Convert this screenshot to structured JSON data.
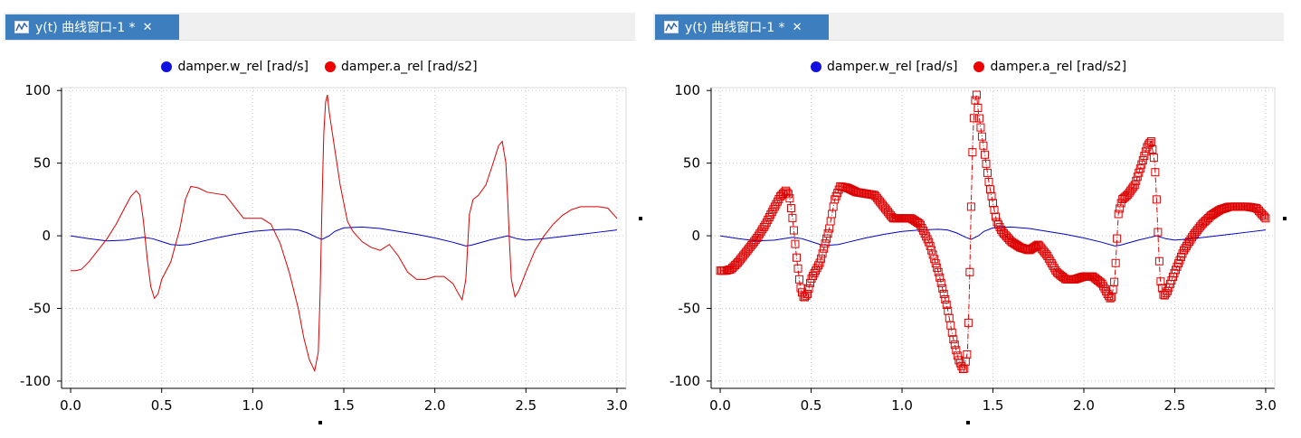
{
  "colors": {
    "tab_bg": "#3d7ebf",
    "series_w": "#0000cc",
    "series_a": "#dd0000",
    "legend_w": "#1010e0",
    "legend_a": "#ee0000",
    "grid": "#c8c8c8"
  },
  "panels": [
    {
      "tab": {
        "title": "y(t) 曲线窗口-1 *",
        "close": "✕",
        "icon": "plot-window-icon"
      },
      "legend": [
        {
          "label": "damper.w_rel [rad/s]"
        },
        {
          "label": "damper.a_rel [rad/s2]"
        }
      ],
      "markers": false
    },
    {
      "tab": {
        "title": "y(t) 曲线窗口-1 *",
        "close": "✕",
        "icon": "plot-window-icon"
      },
      "legend": [
        {
          "label": "damper.w_rel [rad/s]"
        },
        {
          "label": "damper.a_rel [rad/s2]"
        }
      ],
      "markers": true
    }
  ],
  "chart_data": {
    "type": "line",
    "xlim": [
      -0.05,
      3.05
    ],
    "ylim": [
      -105,
      102
    ],
    "x_ticks": [
      0.0,
      0.5,
      1.0,
      1.5,
      2.0,
      2.5,
      3.0
    ],
    "x_tick_labels": [
      "0.0",
      "0.5",
      "1.0",
      "1.5",
      "2.0",
      "2.5",
      "3.0"
    ],
    "y_ticks": [
      100,
      50,
      0,
      -50,
      -100
    ],
    "y_tick_labels": [
      "100",
      "50",
      "0",
      "-50",
      "-100"
    ],
    "grid": true,
    "legend_position": "top-center",
    "series": [
      {
        "name": "damper.w_rel [rad/s]",
        "x": [
          0,
          0.1,
          0.2,
          0.3,
          0.35,
          0.4,
          0.45,
          0.5,
          0.55,
          0.6,
          0.65,
          0.7,
          0.8,
          0.9,
          1.0,
          1.1,
          1.2,
          1.25,
          1.3,
          1.35,
          1.38,
          1.42,
          1.45,
          1.5,
          1.6,
          1.7,
          1.8,
          1.9,
          2.0,
          2.1,
          2.17,
          2.2,
          2.3,
          2.4,
          2.45,
          2.5,
          2.6,
          2.7,
          2.8,
          2.9,
          3.0
        ],
        "y": [
          0,
          -2,
          -3.5,
          -3,
          -2,
          -1,
          -2,
          -4,
          -6,
          -6.5,
          -6,
          -4.5,
          -1.5,
          1,
          3,
          4,
          4.5,
          4,
          2,
          -1,
          -2.5,
          0,
          3,
          5.5,
          6,
          5,
          3,
          1,
          -1.5,
          -4.5,
          -7,
          -6.5,
          -3,
          0,
          -2,
          -3,
          -2,
          -0.5,
          1,
          2.5,
          4
        ]
      },
      {
        "name": "damper.a_rel [rad/s2]",
        "x": [
          0,
          0.03,
          0.06,
          0.1,
          0.15,
          0.2,
          0.25,
          0.3,
          0.33,
          0.36,
          0.38,
          0.4,
          0.42,
          0.44,
          0.46,
          0.48,
          0.5,
          0.55,
          0.6,
          0.63,
          0.66,
          0.7,
          0.75,
          0.8,
          0.85,
          0.9,
          0.95,
          1.0,
          1.05,
          1.1,
          1.15,
          1.2,
          1.25,
          1.28,
          1.31,
          1.34,
          1.36,
          1.37,
          1.38,
          1.39,
          1.4,
          1.41,
          1.42,
          1.45,
          1.48,
          1.52,
          1.55,
          1.6,
          1.65,
          1.7,
          1.75,
          1.8,
          1.85,
          1.9,
          1.95,
          2.0,
          2.05,
          2.1,
          2.13,
          2.15,
          2.17,
          2.19,
          2.21,
          2.24,
          2.28,
          2.32,
          2.35,
          2.37,
          2.39,
          2.4,
          2.41,
          2.42,
          2.44,
          2.46,
          2.5,
          2.55,
          2.6,
          2.65,
          2.7,
          2.75,
          2.8,
          2.85,
          2.9,
          2.95,
          3.0
        ],
        "y": [
          -24,
          -24,
          -23,
          -18,
          -10,
          -2,
          8,
          20,
          27,
          31,
          28,
          10,
          -15,
          -35,
          -43,
          -40,
          -30,
          -18,
          5,
          25,
          34,
          33,
          30,
          29,
          28,
          20,
          12,
          12,
          12,
          8,
          -5,
          -25,
          -50,
          -70,
          -85,
          -93,
          -80,
          -40,
          20,
          70,
          92,
          97,
          85,
          60,
          35,
          10,
          3,
          -4,
          -8,
          -10,
          -6,
          -14,
          -25,
          -30,
          -30,
          -28,
          -28,
          -33,
          -40,
          -44,
          -30,
          15,
          25,
          28,
          35,
          50,
          62,
          65,
          50,
          25,
          -5,
          -30,
          -42,
          -38,
          -25,
          -10,
          0,
          8,
          14,
          18,
          20,
          20,
          20,
          19,
          12
        ]
      }
    ]
  }
}
